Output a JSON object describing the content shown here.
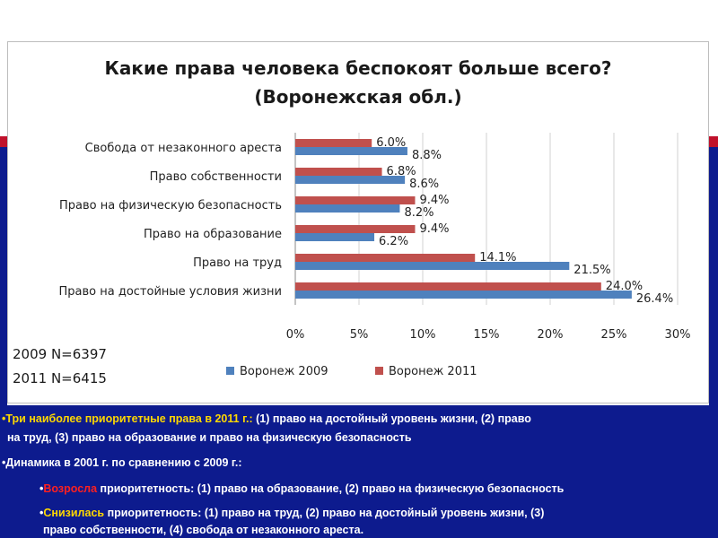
{
  "chart_data": {
    "type": "bar",
    "orientation": "horizontal",
    "title_line1": "Какие права человека беспокоят больше всего?",
    "title_line2": "(Воронежская обл.)",
    "categories": [
      "Свобода от незаконного ареста",
      "Право собственности",
      "Право на физическую безопасность",
      "Право на образование",
      "Право на труд",
      "Право на достойные условия жизни"
    ],
    "series": [
      {
        "name": "Воронеж 2009",
        "color": "#4f81bd",
        "values": [
          8.8,
          8.6,
          8.2,
          6.2,
          21.5,
          26.4
        ],
        "labels": [
          "8.8%",
          "8.6%",
          "8.2%",
          "6.2%",
          "21.5%",
          "26.4%"
        ]
      },
      {
        "name": "Воронеж 2011",
        "color": "#c0504d",
        "values": [
          6.0,
          6.8,
          9.4,
          9.4,
          14.1,
          24.0
        ],
        "labels": [
          "6.0%",
          "6.8%",
          "9.4%",
          "9.4%",
          "14.1%",
          "24.0%"
        ]
      }
    ],
    "xlim": [
      0,
      30
    ],
    "x_ticks": [
      "0%",
      "5%",
      "10%",
      "15%",
      "20%",
      "25%",
      "30%"
    ],
    "grid": true,
    "legend_position": "bottom"
  },
  "notes": {
    "n2009": "2009 N=6397",
    "n2011": "2011 N=6415"
  },
  "summary": {
    "line1_bullet": "•",
    "line1_highlight": "Три наиболее приоритетные права в 2011 г.:",
    "line1_rest": " (1) право на достойный уровень жизни, (2) право",
    "line2": "на труд, (3) право на образование и право на физическую безопасность",
    "line3": "•Динамика в 2001 г. по сравнению с 2009 г.:",
    "line4_bullet": "•",
    "line4_highlight": "Возросла",
    "line4_rest": " приоритетность: (1) право на образование, (2) право на физическую безопасность",
    "line5_bullet": "•",
    "line5_highlight": "Снизилась",
    "line5_rest": " приоритетность:  (1) право на труд,  (2) право на достойный уровень жизни, (3)",
    "line6": "право собственности, (4)  свобода от незаконного ареста."
  }
}
